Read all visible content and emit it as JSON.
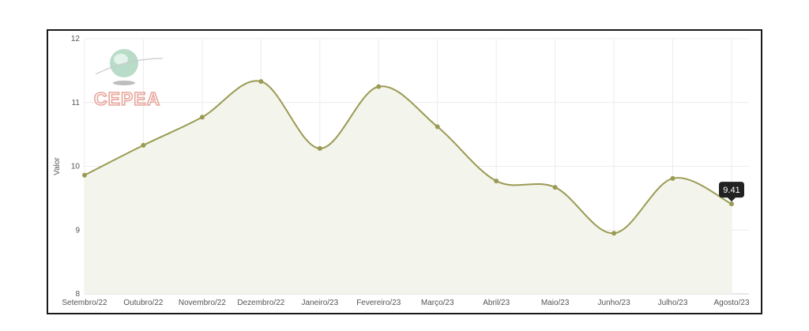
{
  "logo": {
    "text": "CEPEA"
  },
  "chart_data": {
    "type": "line",
    "smooth": true,
    "area_fill": true,
    "ylabel": "Valor",
    "xlabel": "",
    "title": "",
    "ylim": [
      8,
      12
    ],
    "yticks": [
      8,
      9,
      10,
      11,
      12
    ],
    "categories": [
      "Setembro/22",
      "Outubro/22",
      "Novembro/22",
      "Dezembro/22",
      "Janeiro/23",
      "Fevereiro/23",
      "Março/23",
      "Abril/23",
      "Maio/23",
      "Junho/23",
      "Julho/23",
      "Agosto/23"
    ],
    "series": [
      {
        "values": [
          9.86,
          10.33,
          10.77,
          11.33,
          10.28,
          11.25,
          10.62,
          9.77,
          9.67,
          8.95,
          9.81,
          9.41
        ]
      }
    ],
    "tooltip": {
      "label": "9.41"
    },
    "grid": true,
    "colors": {
      "line": "#9a9a52",
      "fill": "#f3f4ec",
      "grid": "#ececec",
      "tooltip_bg": "#222222"
    }
  }
}
